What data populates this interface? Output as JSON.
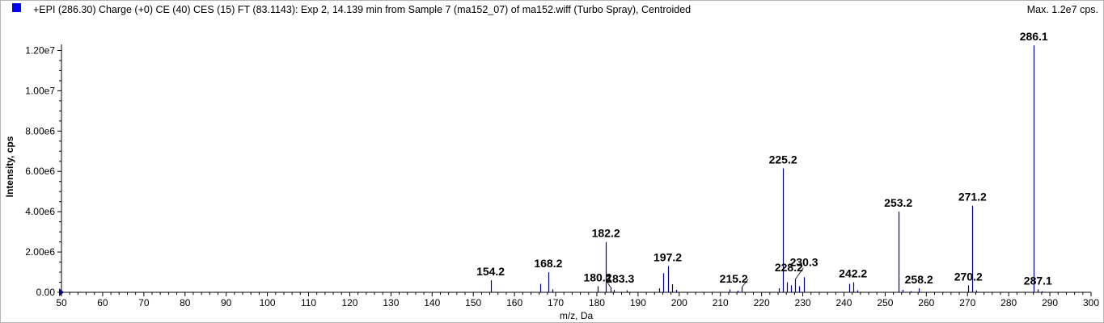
{
  "header": {
    "title": "+EPI (286.30) Charge (+0) CE (40) CES (15) FT (83.1143): Exp 2, 14.139 min from Sample 7 (ma152_07) of ma152.wiff (Turbo Spray), Centroided",
    "max_label": "Max. 1.2e7 cps."
  },
  "colors": {
    "series": "#00008b",
    "legend_marker": "#0000ff",
    "axis": "#000000"
  },
  "chart_data": {
    "type": "bar",
    "title": "+EPI (286.30) Charge (+0) CE (40) CES (15) FT (83.1143): Exp 2, 14.139 min from Sample 7 (ma152_07) of ma152.wiff (Turbo Spray), Centroided",
    "xlabel": "m/z, Da",
    "ylabel": "Intensity, cps",
    "xlim": [
      50,
      300
    ],
    "ylim": [
      0,
      12300000
    ],
    "x_ticks": [
      50,
      60,
      70,
      80,
      90,
      100,
      110,
      120,
      130,
      140,
      150,
      160,
      170,
      180,
      190,
      200,
      210,
      220,
      230,
      240,
      250,
      260,
      270,
      280,
      290,
      300
    ],
    "y_ticks": [
      {
        "value": 0,
        "label": "0.00"
      },
      {
        "value": 2000000,
        "label": "2.00e6"
      },
      {
        "value": 4000000,
        "label": "4.00e6"
      },
      {
        "value": 6000000,
        "label": "6.00e6"
      },
      {
        "value": 8000000,
        "label": "8.00e6"
      },
      {
        "value": 10000000,
        "label": "1.00e7"
      },
      {
        "value": 12000000,
        "label": "1.20e7"
      }
    ],
    "grid": false,
    "peaks": [
      {
        "mz": 154.2,
        "intensity": 600000
      },
      {
        "mz": 166.2,
        "intensity": 420000
      },
      {
        "mz": 168.2,
        "intensity": 1000000
      },
      {
        "mz": 169.2,
        "intensity": 150000
      },
      {
        "mz": 180.2,
        "intensity": 300000
      },
      {
        "mz": 182.2,
        "intensity": 2500000
      },
      {
        "mz": 183.3,
        "intensity": 250000
      },
      {
        "mz": 184.2,
        "intensity": 120000
      },
      {
        "mz": 187.2,
        "intensity": 100000
      },
      {
        "mz": 195.2,
        "intensity": 200000
      },
      {
        "mz": 196.2,
        "intensity": 950000
      },
      {
        "mz": 197.2,
        "intensity": 1300000
      },
      {
        "mz": 198.2,
        "intensity": 400000
      },
      {
        "mz": 199.2,
        "intensity": 120000
      },
      {
        "mz": 212.2,
        "intensity": 150000
      },
      {
        "mz": 214.2,
        "intensity": 80000
      },
      {
        "mz": 215.2,
        "intensity": 250000
      },
      {
        "mz": 224.2,
        "intensity": 200000
      },
      {
        "mz": 225.2,
        "intensity": 6150000
      },
      {
        "mz": 226.2,
        "intensity": 500000
      },
      {
        "mz": 227.2,
        "intensity": 350000
      },
      {
        "mz": 228.2,
        "intensity": 650000
      },
      {
        "mz": 229.2,
        "intensity": 300000
      },
      {
        "mz": 230.3,
        "intensity": 750000
      },
      {
        "mz": 241.2,
        "intensity": 420000
      },
      {
        "mz": 242.2,
        "intensity": 500000
      },
      {
        "mz": 243.2,
        "intensity": 100000
      },
      {
        "mz": 253.2,
        "intensity": 4000000
      },
      {
        "mz": 254.2,
        "intensity": 120000
      },
      {
        "mz": 256.2,
        "intensity": 60000
      },
      {
        "mz": 258.2,
        "intensity": 200000
      },
      {
        "mz": 270.2,
        "intensity": 350000
      },
      {
        "mz": 271.2,
        "intensity": 4300000
      },
      {
        "mz": 272.2,
        "intensity": 100000
      },
      {
        "mz": 286.1,
        "intensity": 12250000
      },
      {
        "mz": 287.1,
        "intensity": 150000
      },
      {
        "mz": 288.1,
        "intensity": 50000
      }
    ],
    "annotations": [
      {
        "label": "154.2",
        "mz": 154.2,
        "intensity": 600000
      },
      {
        "label": "168.2",
        "mz": 168.2,
        "intensity": 1000000
      },
      {
        "label": "180.2",
        "mz": 180.2,
        "intensity": 300000
      },
      {
        "label": "182.2",
        "mz": 182.2,
        "intensity": 2500000
      },
      {
        "label": "183.3",
        "mz": 183.3,
        "intensity": 250000
      },
      {
        "label": "197.2",
        "mz": 197.2,
        "intensity": 1300000
      },
      {
        "label": "215.2",
        "mz": 215.2,
        "intensity": 250000
      },
      {
        "label": "225.2",
        "mz": 225.2,
        "intensity": 6150000
      },
      {
        "label": "228.2",
        "mz": 228.2,
        "intensity": 650000
      },
      {
        "label": "230.3",
        "mz": 230.3,
        "intensity": 750000
      },
      {
        "label": "242.2",
        "mz": 242.2,
        "intensity": 500000
      },
      {
        "label": "253.2",
        "mz": 253.2,
        "intensity": 4000000
      },
      {
        "label": "258.2",
        "mz": 258.2,
        "intensity": 200000
      },
      {
        "label": "270.2",
        "mz": 270.2,
        "intensity": 350000
      },
      {
        "label": "271.2",
        "mz": 271.2,
        "intensity": 4300000
      },
      {
        "label": "286.1",
        "mz": 286.1,
        "intensity": 12250000
      },
      {
        "label": "287.1",
        "mz": 287.1,
        "intensity": 150000
      }
    ]
  }
}
